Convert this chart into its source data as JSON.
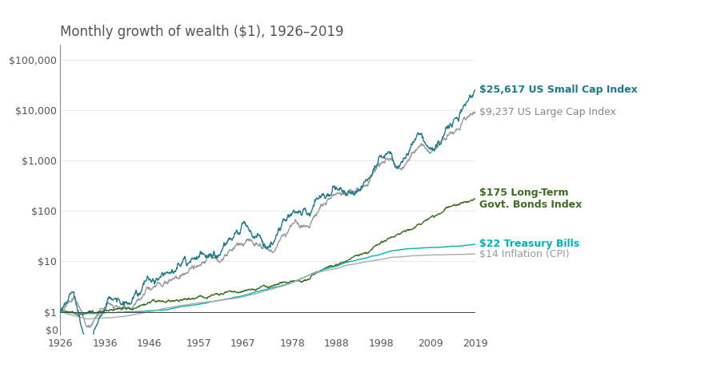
{
  "title": "Monthly growth of wealth ($1), 1926–2019",
  "title_fontsize": 12,
  "title_color": "#555555",
  "x_ticks": [
    1926,
    1936,
    1946,
    1957,
    1967,
    1978,
    1988,
    1998,
    2009,
    2019
  ],
  "series": {
    "small_cap": {
      "label": "$25,617 US Small Cap Index",
      "color": "#1d7b8a",
      "linewidth": 1.0
    },
    "large_cap": {
      "label": "$9,237 US Large Cap Index",
      "color": "#999999",
      "linewidth": 1.0
    },
    "bonds": {
      "label": "$175 Long-Term\nGovt. Bonds Index",
      "color": "#3d6e1e",
      "linewidth": 1.0
    },
    "tbills": {
      "label": "$22 Treasury Bills",
      "color": "#00b4b4",
      "linewidth": 1.0
    },
    "inflation": {
      "label": "$14 Inflation (CPI)",
      "color": "#aaaaaa",
      "linewidth": 1.0
    }
  },
  "label_colors": {
    "small_cap": "#1d7b8a",
    "large_cap": "#888888",
    "bonds": "#3d6e1e",
    "tbills": "#00b4b4",
    "inflation": "#999999"
  },
  "background_color": "#ffffff",
  "grid_color": "#e0e0e0",
  "label_fontsize": 9,
  "tick_fontsize": 9
}
